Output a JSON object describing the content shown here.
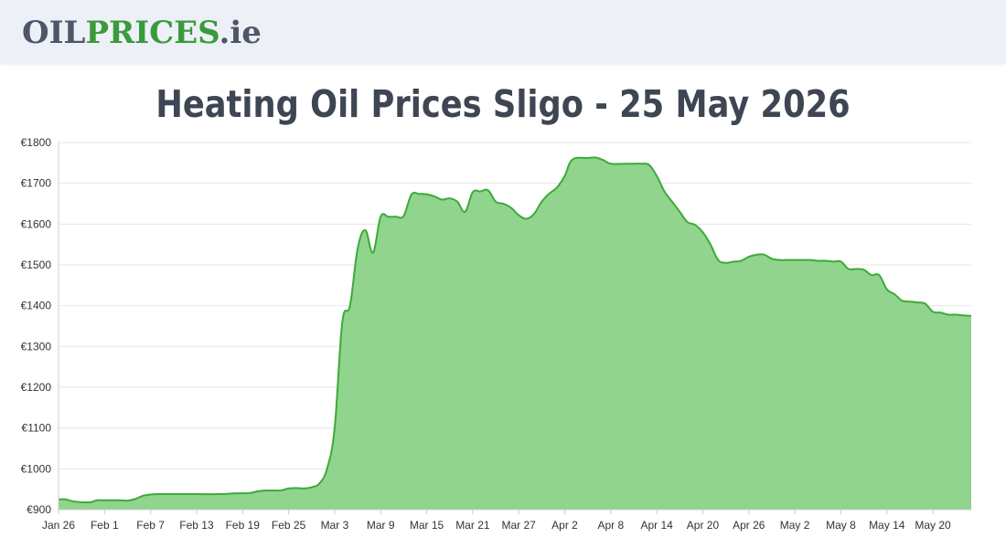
{
  "header": {
    "logo_part1": "OIL",
    "logo_part2": "PRICES",
    "logo_part3": ".ie"
  },
  "colors": {
    "header_bg": "#edf0f6",
    "logo_dark": "#4d5767",
    "logo_green": "#3a9a3d",
    "area_fill": "#90d48e",
    "line": "#3daa3a",
    "grid": "#e6e6e6"
  },
  "chart_data": {
    "type": "area",
    "title": "Heating Oil Prices Sligo - 25 May 2026",
    "xlabel": "",
    "ylabel": "",
    "ylim": [
      900,
      1800
    ],
    "xlim": [
      "2026-01-26",
      "2026-05-25"
    ],
    "grid": true,
    "y_ticks": [
      900,
      1000,
      1100,
      1200,
      1300,
      1400,
      1500,
      1600,
      1700,
      1800
    ],
    "y_tick_labels": [
      "€900",
      "€1000",
      "€1100",
      "€1200",
      "€1300",
      "€1400",
      "€1500",
      "€1600",
      "€1700",
      "€1800"
    ],
    "x_ticks": [
      "2026-01-26",
      "2026-02-01",
      "2026-02-07",
      "2026-02-13",
      "2026-02-19",
      "2026-02-25",
      "2026-03-03",
      "2026-03-09",
      "2026-03-15",
      "2026-03-21",
      "2026-03-27",
      "2026-04-02",
      "2026-04-08",
      "2026-04-14",
      "2026-04-20",
      "2026-04-26",
      "2026-05-02",
      "2026-05-08",
      "2026-05-14",
      "2026-05-20"
    ],
    "x_tick_labels": [
      "Jan 26",
      "Feb 1",
      "Feb 7",
      "Feb 13",
      "Feb 19",
      "Feb 25",
      "Mar 3",
      "Mar 9",
      "Mar 15",
      "Mar 21",
      "Mar 27",
      "Apr 2",
      "Apr 8",
      "Apr 14",
      "Apr 20",
      "Apr 26",
      "May 2",
      "May 8",
      "May 14",
      "May 20"
    ],
    "x": [
      "2026-01-26",
      "2026-01-27",
      "2026-01-28",
      "2026-01-30",
      "2026-01-31",
      "2026-02-01",
      "2026-02-03",
      "2026-02-04",
      "2026-02-05",
      "2026-02-06",
      "2026-02-07",
      "2026-02-08",
      "2026-02-10",
      "2026-02-13",
      "2026-02-16",
      "2026-02-18",
      "2026-02-19",
      "2026-02-20",
      "2026-02-21",
      "2026-02-22",
      "2026-02-23",
      "2026-02-24",
      "2026-02-25",
      "2026-02-26",
      "2026-02-27",
      "2026-02-28",
      "2026-03-01",
      "2026-03-02",
      "2026-03-03",
      "2026-03-04",
      "2026-03-05",
      "2026-03-06",
      "2026-03-07",
      "2026-03-08",
      "2026-03-09",
      "2026-03-10",
      "2026-03-11",
      "2026-03-12",
      "2026-03-13",
      "2026-03-14",
      "2026-03-15",
      "2026-03-16",
      "2026-03-17",
      "2026-03-18",
      "2026-03-19",
      "2026-03-20",
      "2026-03-21",
      "2026-03-22",
      "2026-03-23",
      "2026-03-24",
      "2026-03-25",
      "2026-03-26",
      "2026-03-27",
      "2026-03-28",
      "2026-03-29",
      "2026-03-30",
      "2026-03-31",
      "2026-04-01",
      "2026-04-02",
      "2026-04-03",
      "2026-04-05",
      "2026-04-06",
      "2026-04-07",
      "2026-04-08",
      "2026-04-10",
      "2026-04-11",
      "2026-04-12",
      "2026-04-13",
      "2026-04-14",
      "2026-04-15",
      "2026-04-16",
      "2026-04-17",
      "2026-04-18",
      "2026-04-19",
      "2026-04-20",
      "2026-04-21",
      "2026-04-22",
      "2026-04-23",
      "2026-04-24",
      "2026-04-25",
      "2026-04-26",
      "2026-04-27",
      "2026-04-28",
      "2026-04-29",
      "2026-04-30",
      "2026-05-01",
      "2026-05-02",
      "2026-05-03",
      "2026-05-04",
      "2026-05-05",
      "2026-05-06",
      "2026-05-07",
      "2026-05-08",
      "2026-05-09",
      "2026-05-10",
      "2026-05-11",
      "2026-05-12",
      "2026-05-13",
      "2026-05-14",
      "2026-05-15",
      "2026-05-16",
      "2026-05-17",
      "2026-05-18",
      "2026-05-19",
      "2026-05-20",
      "2026-05-21",
      "2026-05-22",
      "2026-05-23",
      "2026-05-24",
      "2026-05-25"
    ],
    "series": [
      {
        "values": [
          925,
          925,
          920,
          918,
          923,
          923,
          923,
          922,
          926,
          934,
          937,
          938,
          938,
          938,
          938,
          940,
          940,
          941,
          945,
          947,
          947,
          947,
          952,
          953,
          952,
          955,
          964,
          1000,
          1100,
          1360,
          1400,
          1540,
          1585,
          1530,
          1618,
          1618,
          1618,
          1620,
          1672,
          1674,
          1673,
          1668,
          1660,
          1663,
          1655,
          1630,
          1678,
          1680,
          1683,
          1655,
          1650,
          1640,
          1622,
          1613,
          1625,
          1655,
          1675,
          1690,
          1718,
          1758,
          1762,
          1763,
          1757,
          1748,
          1748,
          1748,
          1748,
          1745,
          1718,
          1680,
          1655,
          1630,
          1605,
          1598,
          1580,
          1550,
          1512,
          1505,
          1508,
          1510,
          1520,
          1525,
          1525,
          1515,
          1512,
          1512,
          1512,
          1512,
          1512,
          1510,
          1510,
          1508,
          1508,
          1490,
          1490,
          1488,
          1475,
          1475,
          1440,
          1428,
          1412,
          1410,
          1408,
          1405,
          1385,
          1383,
          1378,
          1378,
          1376,
          1375
        ]
      }
    ]
  }
}
